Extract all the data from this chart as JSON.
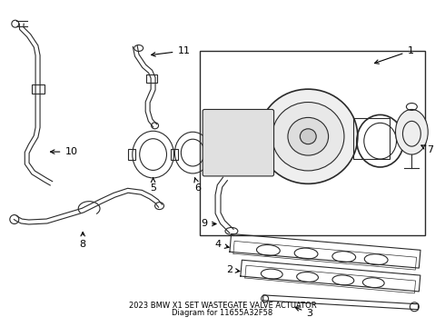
{
  "title": "2023 BMW X1 SET WASTEGATE VALVE ACTUATOR",
  "subtitle": "Diagram for 11655A32F58",
  "background_color": "#ffffff",
  "line_color": "#2a2a2a",
  "label_color": "#000000",
  "figsize": [
    4.9,
    3.6
  ],
  "dpi": 100
}
